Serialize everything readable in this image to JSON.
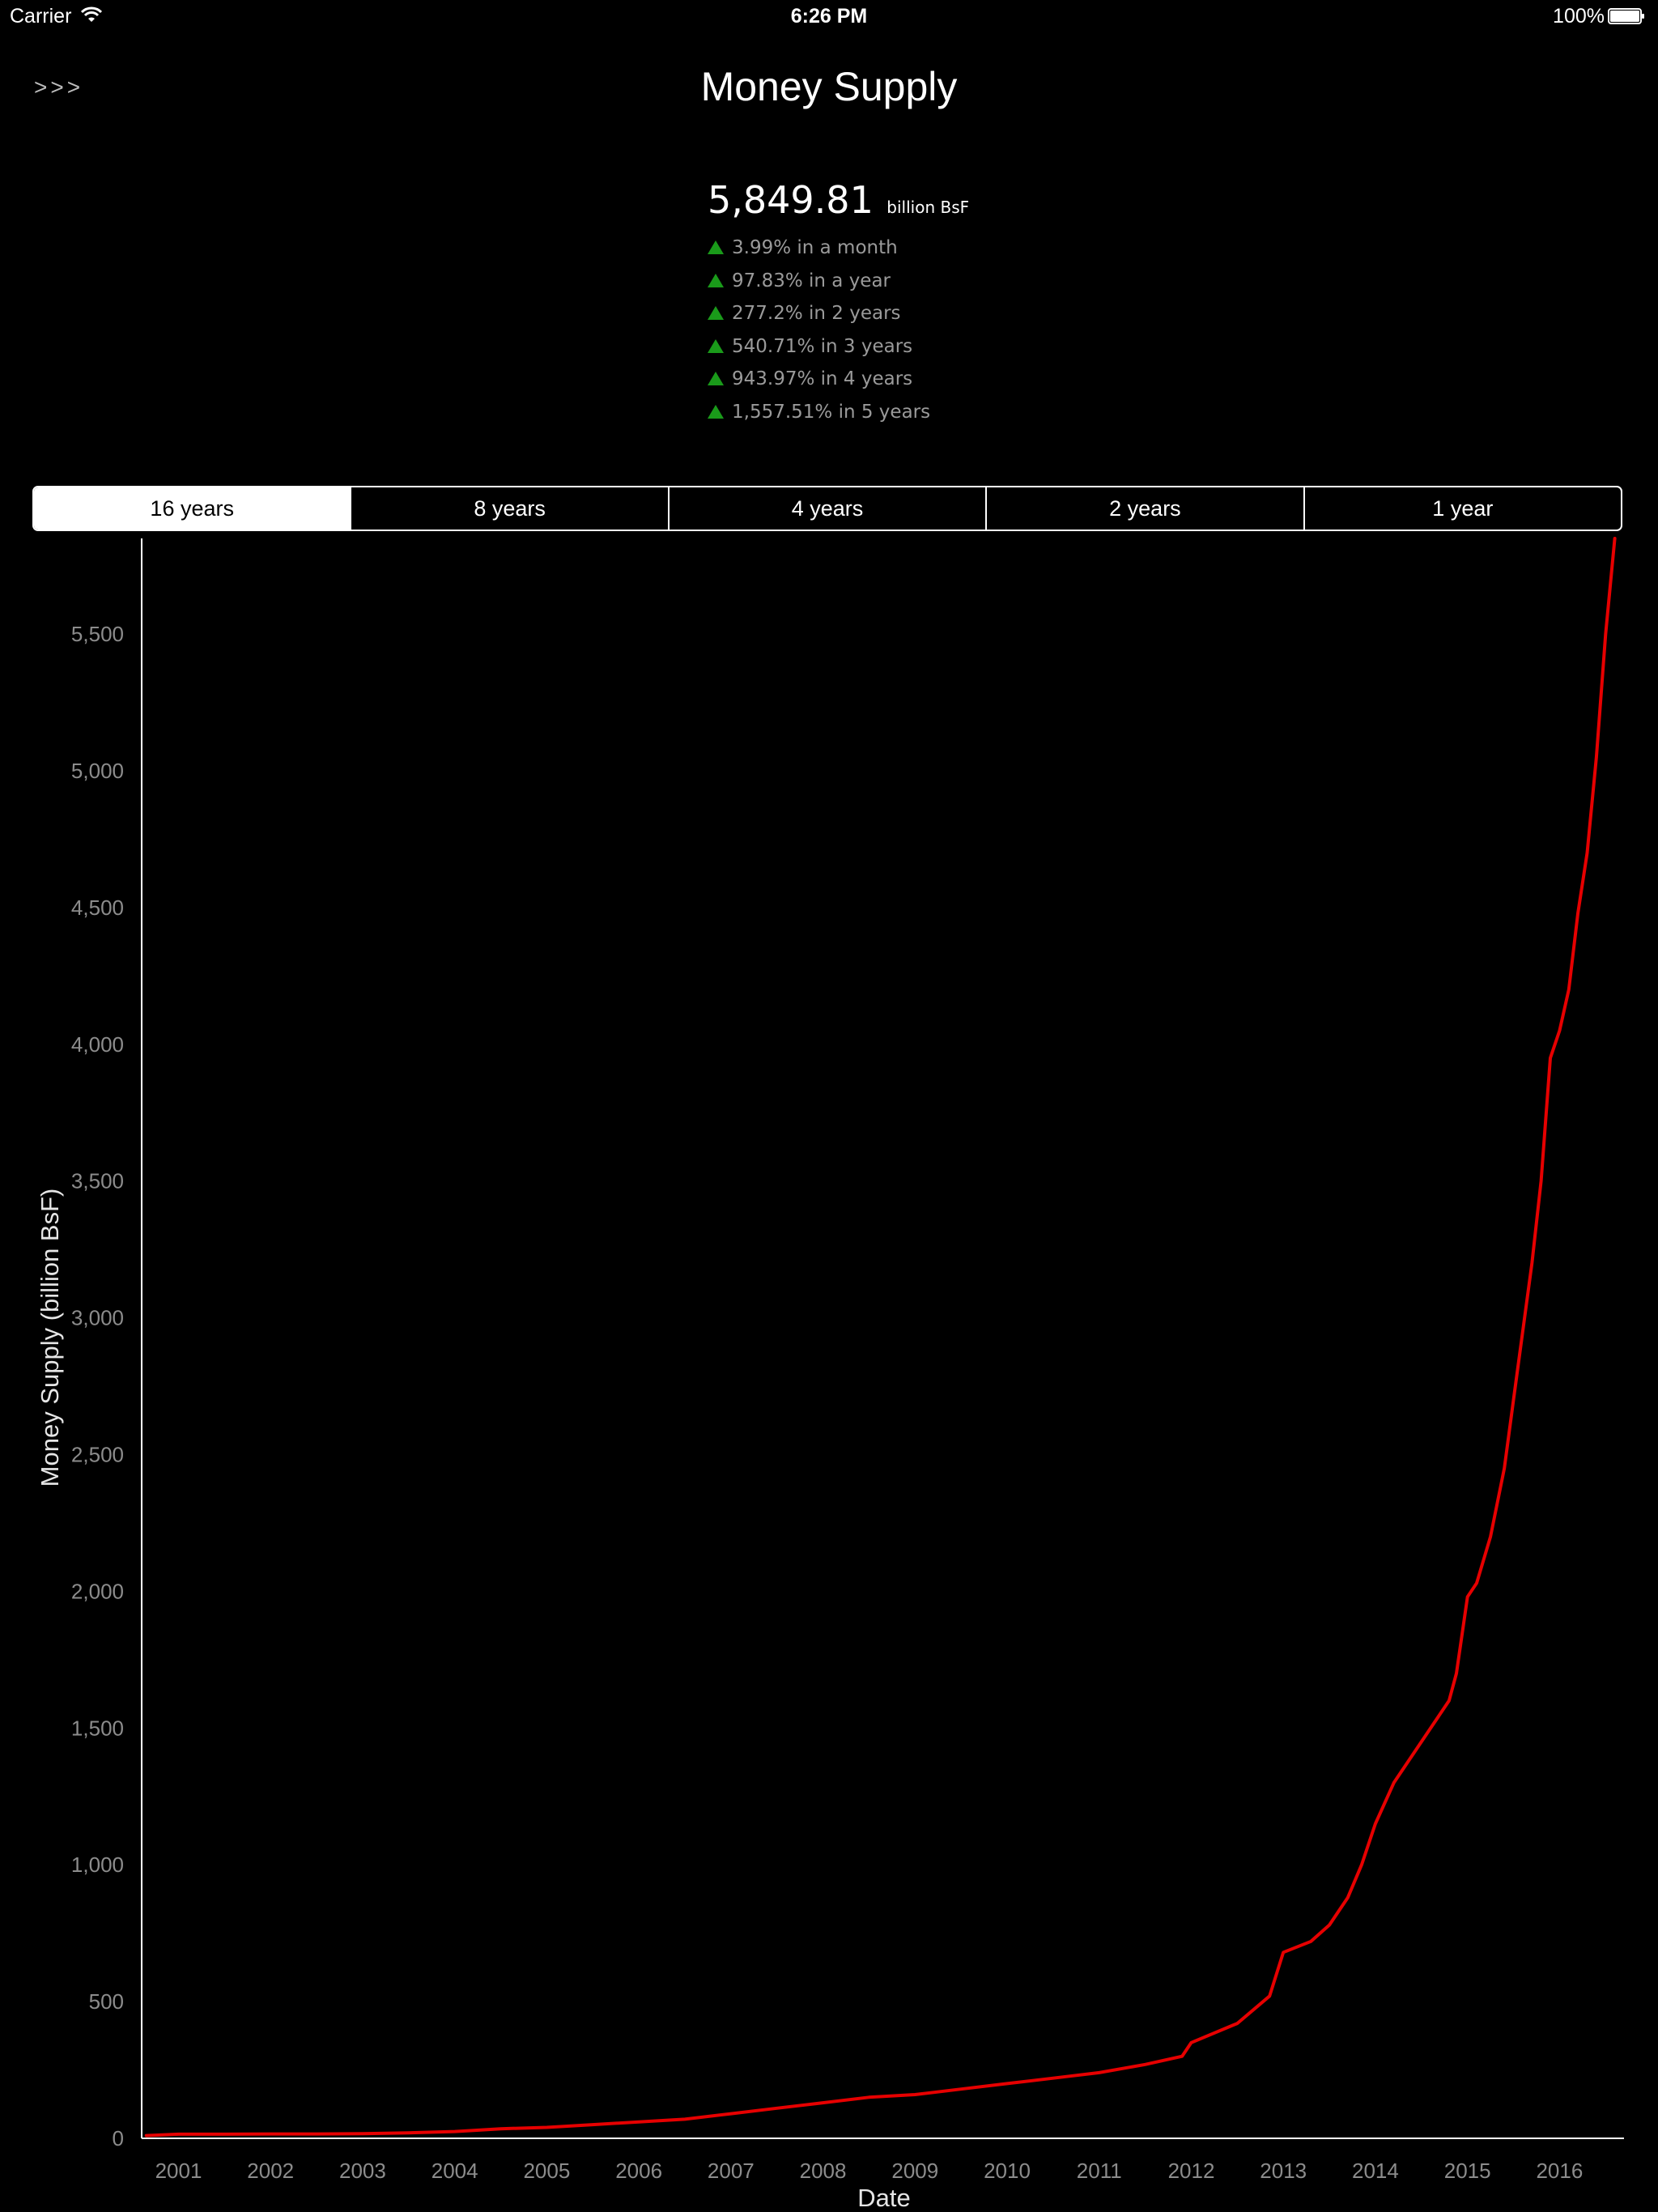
{
  "status_bar": {
    "carrier": "Carrier",
    "time": "6:26 PM",
    "battery": "100%"
  },
  "header": {
    "menu_label": ">>>",
    "title": "Money Supply"
  },
  "summary": {
    "value": "5,849.81",
    "unit": "billion BsF",
    "changes": [
      "3.99% in a month",
      "97.83% in a year",
      "277.2% in 2 years",
      "540.71% in 3 years",
      "943.97% in 4 years",
      "1,557.51% in 5 years"
    ]
  },
  "range_selector": {
    "options": [
      "16 years",
      "8 years",
      "4 years",
      "2 years",
      "1 year"
    ],
    "selected": "16 years"
  },
  "colors": {
    "background": "#000000",
    "line": "#e60000",
    "up_arrow": "#1a9a1a"
  },
  "chart_data": {
    "type": "line",
    "title": "",
    "xlabel": "Date",
    "ylabel": "Money Supply (billion BsF)",
    "xlim": [
      2000.6,
      2016.7
    ],
    "ylim": [
      0,
      5849.81
    ],
    "yticks": [
      0,
      500,
      1000,
      1500,
      2000,
      2500,
      3000,
      3500,
      4000,
      4500,
      5000,
      5500
    ],
    "ytick_labels": [
      "0",
      "500",
      "1,000",
      "1,500",
      "2,000",
      "2,500",
      "3,000",
      "3,500",
      "4,000",
      "4,500",
      "5,000",
      "5,500"
    ],
    "xticks": [
      2001,
      2002,
      2003,
      2004,
      2005,
      2006,
      2007,
      2008,
      2009,
      2010,
      2011,
      2012,
      2013,
      2014,
      2015,
      2016
    ],
    "xtick_labels": [
      "2001",
      "2002",
      "2003",
      "2004",
      "2005",
      "2006",
      "2007",
      "2008",
      "2009",
      "2010",
      "2011",
      "2012",
      "2013",
      "2014",
      "2015",
      "2016"
    ],
    "series": [
      {
        "x": [
          2000.65,
          2001.0,
          2001.5,
          2002.0,
          2002.5,
          2003.0,
          2003.5,
          2004.0,
          2004.5,
          2005.0,
          2005.5,
          2006.0,
          2006.5,
          2007.0,
          2007.5,
          2008.0,
          2008.5,
          2009.0,
          2009.5,
          2010.0,
          2010.5,
          2011.0,
          2011.5,
          2011.9,
          2012.0,
          2012.5,
          2012.85,
          2013.0,
          2013.3,
          2013.5,
          2013.7,
          2013.85,
          2014.0,
          2014.2,
          2014.4,
          2014.6,
          2014.8,
          2014.88,
          2015.0,
          2015.1,
          2015.25,
          2015.4,
          2015.5,
          2015.6,
          2015.7,
          2015.8,
          2015.9,
          2016.0,
          2016.1,
          2016.2,
          2016.3,
          2016.4,
          2016.5,
          2016.6
        ],
        "y": [
          10,
          15,
          15,
          16,
          16,
          17,
          20,
          25,
          35,
          40,
          50,
          60,
          70,
          90,
          110,
          130,
          150,
          160,
          180,
          200,
          220,
          240,
          270,
          300,
          350,
          420,
          520,
          680,
          720,
          780,
          880,
          1000,
          1150,
          1300,
          1400,
          1500,
          1600,
          1700,
          1980,
          2030,
          2200,
          2450,
          2700,
          2950,
          3200,
          3500,
          3950,
          4050,
          4200,
          4480,
          4700,
          5050,
          5500,
          5849.81
        ]
      }
    ]
  }
}
